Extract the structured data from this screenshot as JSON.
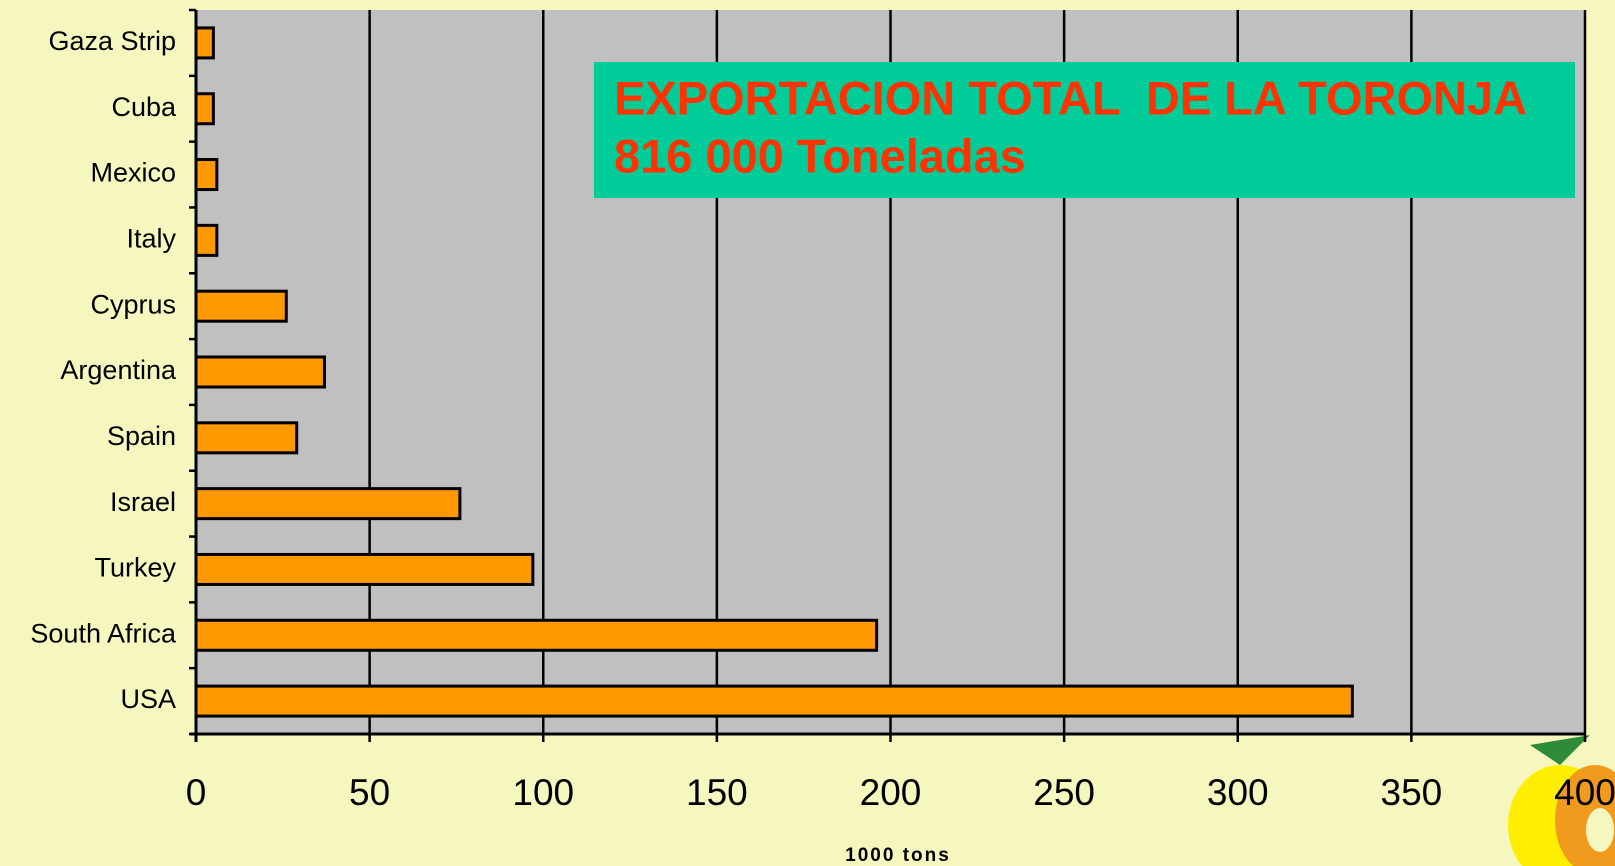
{
  "chart_data": {
    "type": "barh",
    "categories": [
      "Gaza Strip",
      "Cuba",
      "Mexico",
      "Italy",
      "Cyprus",
      "Argentina",
      "Spain",
      "Israel",
      "Turkey",
      "South Africa",
      "USA"
    ],
    "values": [
      5,
      5,
      6,
      6,
      26,
      37,
      29,
      76,
      97,
      196,
      333
    ],
    "color": "#ff9900",
    "xlabel": "1000 tons",
    "xlim": [
      0,
      400
    ],
    "xticks": [
      0,
      50,
      100,
      150,
      200,
      250,
      300,
      350,
      400
    ],
    "grid": true,
    "annotations": [
      "EXPORTACION TOTAL  DE LA TORONJA",
      "816 000 Toneladas"
    ]
  }
}
